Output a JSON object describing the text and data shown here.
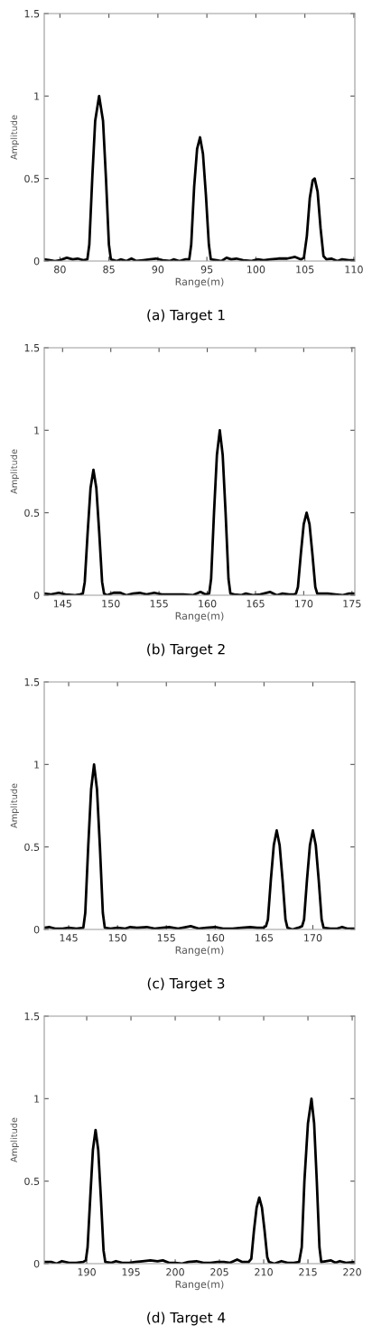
{
  "chart_data": [
    {
      "type": "line",
      "title": "(a) Target 1",
      "xlabel": "Range(m)",
      "ylabel": "Amplitude",
      "xlim": [
        78.4,
        110.1
      ],
      "xticks": [
        80,
        85,
        90,
        95,
        100,
        105,
        110
      ],
      "ylim": [
        0,
        1.5
      ],
      "yticks": [
        0,
        0.5,
        1,
        1.5
      ],
      "grid": false,
      "series": [
        {
          "color": "#000000",
          "x": [
            78.4,
            79,
            79.5,
            80,
            80.7,
            81.3,
            81.8,
            82.4,
            82.8,
            83.0,
            83.3,
            83.6,
            84.0,
            84.4,
            84.7,
            85.0,
            85.2,
            85.8,
            86.2,
            86.8,
            87.3,
            87.8,
            88.5,
            89.2,
            89.8,
            90.5,
            91.2,
            91.6,
            92.2,
            92.8,
            93.2,
            93.4,
            93.7,
            94.0,
            94.3,
            94.6,
            94.9,
            95.2,
            95.4,
            96,
            96.5,
            97.0,
            97.5,
            98,
            98.7,
            99.5,
            100.2,
            100.8,
            101.5,
            102.3,
            103.2,
            104.0,
            104.6,
            104.9,
            105.2,
            105.5,
            105.8,
            106.0,
            106.3,
            106.6,
            106.9,
            107.2,
            107.7,
            108.3,
            108.8,
            109.5,
            110
          ],
          "values": [
            0.01,
            0.005,
            0.0,
            0.005,
            0.02,
            0.01,
            0.015,
            0.005,
            0.01,
            0.1,
            0.5,
            0.85,
            1.0,
            0.85,
            0.5,
            0.1,
            0.01,
            0.0,
            0.01,
            0.0,
            0.015,
            0.0,
            0.005,
            0.01,
            0.015,
            0.005,
            0.0,
            0.01,
            0.0,
            0.01,
            0.01,
            0.1,
            0.45,
            0.68,
            0.75,
            0.65,
            0.4,
            0.1,
            0.01,
            0.005,
            0.0,
            0.02,
            0.01,
            0.015,
            0.005,
            0.0,
            0.01,
            0.005,
            0.01,
            0.015,
            0.015,
            0.025,
            0.01,
            0.02,
            0.15,
            0.38,
            0.49,
            0.5,
            0.42,
            0.2,
            0.03,
            0.01,
            0.015,
            0.0,
            0.01,
            0.005,
            0.005
          ]
        }
      ]
    },
    {
      "type": "line",
      "title": "(b) Target 2",
      "xlabel": "Range(m)",
      "ylabel": "Amplitude",
      "xlim": [
        143.1,
        175.3
      ],
      "xticks": [
        145,
        150,
        155,
        160,
        165,
        170,
        175
      ],
      "ylim": [
        0,
        1.5
      ],
      "yticks": [
        0,
        0.5,
        1,
        1.5
      ],
      "grid": false,
      "series": [
        {
          "color": "#000000",
          "x": [
            143.1,
            143.8,
            144.6,
            145.3,
            146.2,
            146.8,
            147.1,
            147.3,
            147.6,
            147.9,
            148.2,
            148.5,
            148.8,
            149.1,
            149.3,
            149.6,
            150.3,
            151.0,
            151.6,
            152.3,
            153.0,
            153.7,
            154.5,
            155.3,
            156.5,
            157.5,
            158.5,
            159.3,
            159.8,
            160.2,
            160.4,
            160.7,
            161.0,
            161.3,
            161.6,
            161.9,
            162.2,
            162.4,
            162.8,
            163.5,
            164.0,
            164.8,
            165.5,
            166.5,
            167.2,
            167.8,
            168.5,
            169.0,
            169.2,
            169.4,
            169.7,
            170.0,
            170.3,
            170.6,
            170.9,
            171.2,
            171.4,
            171.8,
            172.5,
            173.3,
            174.0,
            174.7,
            175.3
          ],
          "values": [
            0.01,
            0.005,
            0.015,
            0.005,
            0.0,
            0.005,
            0.01,
            0.08,
            0.38,
            0.65,
            0.76,
            0.65,
            0.38,
            0.08,
            0.01,
            0.0,
            0.015,
            0.015,
            0.0,
            0.01,
            0.015,
            0.005,
            0.015,
            0.005,
            0.005,
            0.005,
            0.0,
            0.02,
            0.005,
            0.01,
            0.1,
            0.5,
            0.85,
            1.0,
            0.85,
            0.5,
            0.1,
            0.01,
            0.005,
            0.0,
            0.01,
            0.0,
            0.005,
            0.02,
            0.0,
            0.01,
            0.005,
            0.005,
            0.01,
            0.05,
            0.25,
            0.43,
            0.5,
            0.43,
            0.25,
            0.05,
            0.01,
            0.01,
            0.01,
            0.005,
            0.0,
            0.01,
            0.01
          ]
        }
      ]
    },
    {
      "type": "line",
      "title": "(c) Target 3",
      "xlabel": "Range(m)",
      "ylabel": "Amplitude",
      "xlim": [
        142.5,
        174.3
      ],
      "xticks": [
        145,
        150,
        155,
        160,
        165,
        170
      ],
      "ylim": [
        0,
        1.5
      ],
      "yticks": [
        0,
        0.5,
        1,
        1.5
      ],
      "grid": false,
      "series": [
        {
          "color": "#000000",
          "x": [
            142.5,
            143.0,
            143.6,
            144.4,
            145.0,
            145.8,
            146.5,
            146.7,
            147.0,
            147.3,
            147.6,
            147.9,
            148.2,
            148.5,
            148.7,
            149.3,
            150.0,
            150.8,
            151.3,
            152.0,
            153.0,
            153.8,
            154.6,
            155.3,
            156.2,
            157.5,
            158.3,
            159.1,
            160.0,
            160.8,
            161.8,
            162.7,
            163.6,
            164.3,
            164.9,
            165.2,
            165.4,
            165.7,
            166.0,
            166.3,
            166.6,
            166.9,
            167.2,
            167.4,
            167.9,
            168.5,
            168.9,
            169.1,
            169.4,
            169.7,
            170.0,
            170.3,
            170.6,
            170.9,
            171.1,
            171.8,
            172.5,
            173.0,
            173.5,
            174.3
          ],
          "values": [
            0.01,
            0.015,
            0.005,
            0.005,
            0.01,
            0.005,
            0.01,
            0.1,
            0.5,
            0.85,
            1.0,
            0.85,
            0.5,
            0.1,
            0.01,
            0.005,
            0.01,
            0.005,
            0.015,
            0.01,
            0.015,
            0.005,
            0.01,
            0.015,
            0.005,
            0.02,
            0.005,
            0.01,
            0.015,
            0.005,
            0.005,
            0.01,
            0.015,
            0.01,
            0.01,
            0.02,
            0.06,
            0.3,
            0.51,
            0.6,
            0.51,
            0.3,
            0.06,
            0.01,
            0.0,
            0.01,
            0.02,
            0.06,
            0.3,
            0.51,
            0.6,
            0.51,
            0.3,
            0.06,
            0.01,
            0.005,
            0.005,
            0.015,
            0.005,
            0.005
          ]
        }
      ]
    },
    {
      "type": "line",
      "title": "(d) Target 4",
      "xlabel": "Range(m)",
      "ylabel": "Amplitude",
      "xlim": [
        185.2,
        220.3
      ],
      "xticks": [
        190,
        195,
        200,
        205,
        210,
        215,
        220
      ],
      "ylim": [
        0,
        1.5
      ],
      "yticks": [
        0,
        0.5,
        1,
        1.5
      ],
      "grid": false,
      "series": [
        {
          "color": "#000000",
          "x": [
            185.2,
            186.0,
            186.6,
            187.2,
            188.0,
            188.8,
            189.6,
            189.9,
            190.1,
            190.4,
            190.7,
            191.0,
            191.3,
            191.6,
            191.9,
            192.1,
            192.8,
            193.3,
            194.0,
            194.8,
            195.5,
            196.3,
            197.2,
            198.0,
            198.6,
            199.3,
            200.0,
            200.7,
            201.5,
            202.4,
            203.2,
            204.0,
            204.8,
            205.5,
            206.2,
            207.0,
            207.6,
            208.3,
            208.6,
            208.9,
            209.2,
            209.5,
            209.8,
            210.1,
            210.4,
            210.6,
            211.2,
            212.0,
            212.7,
            213.4,
            214.0,
            214.3,
            214.6,
            215.0,
            215.4,
            215.7,
            216.0,
            216.3,
            216.5,
            217.0,
            217.6,
            218.1,
            218.6,
            219.3,
            220.3
          ],
          "values": [
            0.01,
            0.01,
            0.0,
            0.015,
            0.005,
            0.005,
            0.01,
            0.02,
            0.1,
            0.4,
            0.69,
            0.81,
            0.69,
            0.4,
            0.08,
            0.01,
            0.005,
            0.015,
            0.005,
            0.005,
            0.01,
            0.015,
            0.02,
            0.015,
            0.02,
            0.005,
            0.005,
            0.0,
            0.01,
            0.015,
            0.005,
            0.005,
            0.01,
            0.01,
            0.005,
            0.025,
            0.01,
            0.01,
            0.03,
            0.2,
            0.34,
            0.4,
            0.34,
            0.2,
            0.04,
            0.01,
            0.0,
            0.015,
            0.005,
            0.005,
            0.01,
            0.1,
            0.5,
            0.85,
            1.0,
            0.85,
            0.5,
            0.1,
            0.01,
            0.015,
            0.02,
            0.005,
            0.015,
            0.005,
            0.01
          ]
        }
      ]
    }
  ]
}
